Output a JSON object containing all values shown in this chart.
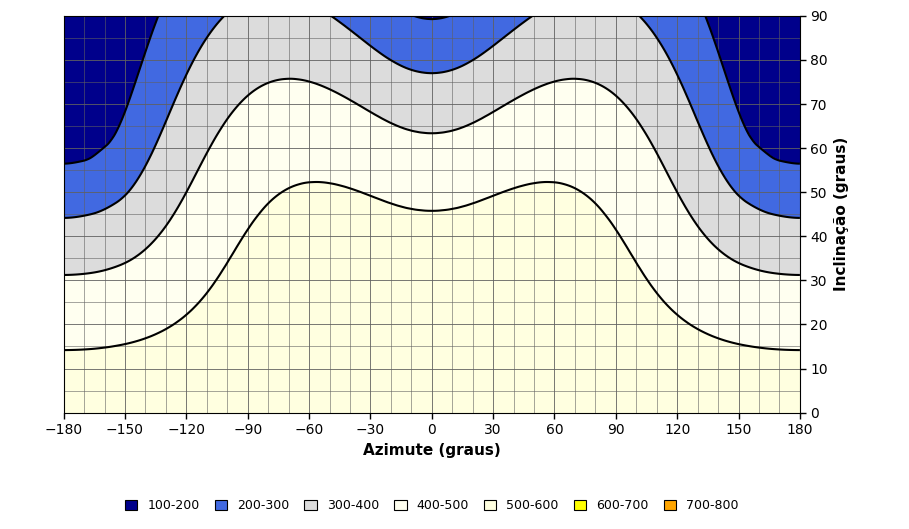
{
  "title": "",
  "xlabel": "Azimute (graus)",
  "ylabel": "Inclinação (graus)",
  "xlim": [
    -180,
    180
  ],
  "ylim": [
    0,
    90
  ],
  "xticks": [
    -180,
    -150,
    -120,
    -90,
    -60,
    -30,
    0,
    30,
    60,
    90,
    120,
    150,
    180
  ],
  "yticks": [
    0,
    10,
    20,
    30,
    40,
    50,
    60,
    70,
    80,
    90
  ],
  "levels": [
    100,
    200,
    300,
    400,
    500,
    600,
    700,
    800
  ],
  "colors": [
    "#00008B",
    "#4169E1",
    "#DCDCDC",
    "#FFFFF0",
    "#FFFFE0",
    "#FFFF00",
    "#FFA500"
  ],
  "legend_labels": [
    "100-200",
    "200-300",
    "300-400",
    "400-500",
    "500-600",
    "600-700",
    "700-800"
  ],
  "legend_colors": [
    "#00008B",
    "#4169E1",
    "#DCDCDC",
    "#FFFFF0",
    "#FFFFE0",
    "#FFFF00",
    "#FFA500"
  ],
  "grid_color": "#606060",
  "grid_linewidth": 0.5,
  "contour_linewidth": 1.5
}
